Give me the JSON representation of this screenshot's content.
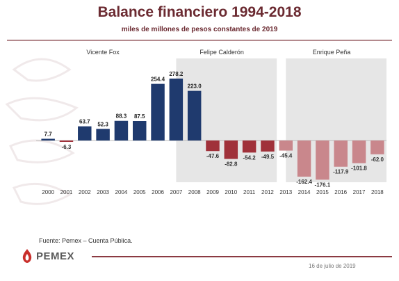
{
  "header": {
    "title": "Balance financiero 1994-2018",
    "subtitle": "miles de millones de pesos constantes de 2019"
  },
  "footer": {
    "source": "Fuente: Pemex – Cuenta Pública.",
    "logo_text": "PEMEX",
    "date": "16 de julio de 2019"
  },
  "colors": {
    "title": "#6b2a31",
    "positive_bar": "#1f3a6e",
    "negative_bar": "#a0313a",
    "negative_bar_light": "#c9878c",
    "period_band": "#e6e6e6"
  },
  "chart_data": {
    "type": "bar",
    "categories": [
      "2000",
      "2001",
      "2002",
      "2003",
      "2004",
      "2005",
      "2006",
      "2007",
      "2008",
      "2009",
      "2010",
      "2011",
      "2012",
      "2013",
      "2014",
      "2015",
      "2016",
      "2017",
      "2018"
    ],
    "values": [
      7.7,
      -6.3,
      63.7,
      52.3,
      88.3,
      87.5,
      254.4,
      278.2,
      223.0,
      -47.6,
      -82.8,
      -54.2,
      -49.5,
      -45.4,
      -162.4,
      -176.1,
      -117.9,
      -101.8,
      -62.0
    ],
    "value_labels": [
      "7.7",
      "-6.3",
      "63.7",
      "52.3",
      "88.3",
      "87.5",
      "254.4",
      "278.2",
      "223.0",
      "-47.6",
      "-82.8",
      "-54.2",
      "-49.5",
      "-45.4",
      "-162.4",
      "-176.1",
      "-117.9",
      "-101.8",
      "-62.0"
    ],
    "periods": [
      {
        "label": "Vicente Fox",
        "from": "2000",
        "to": "2006",
        "shaded": false
      },
      {
        "label": "Felipe Calderón",
        "from": "2007",
        "to": "2012",
        "shaded": true
      },
      {
        "label": "Enrique Peña",
        "from": "2013",
        "to": "2018",
        "shaded": true
      }
    ],
    "title": "Balance financiero 1994-2018",
    "xlabel": "",
    "ylabel": "",
    "grid": false
  }
}
